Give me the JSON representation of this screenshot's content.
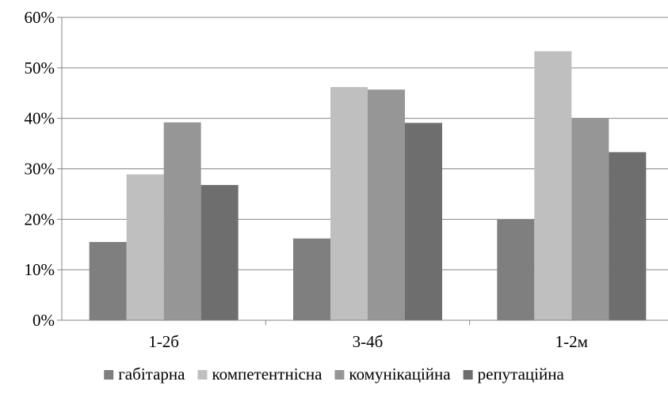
{
  "chart_data": {
    "type": "bar",
    "categories": [
      "1-2б",
      "3-4б",
      "1-2м"
    ],
    "series": [
      {
        "name": "габітарна",
        "values": [
          15.5,
          16.2,
          20.0
        ],
        "color": "#7f7f7f"
      },
      {
        "name": "компетентнісна",
        "values": [
          28.9,
          46.2,
          53.3
        ],
        "color": "#bfbfbf"
      },
      {
        "name": "комунікаційна",
        "values": [
          39.2,
          45.7,
          40.0
        ],
        "color": "#969696"
      },
      {
        "name": "репутаційна",
        "values": [
          26.8,
          39.1,
          33.3
        ],
        "color": "#6e6e6e"
      }
    ],
    "y_ticks": [
      "0%",
      "10%",
      "20%",
      "30%",
      "40%",
      "50%",
      "60%"
    ],
    "ylim": [
      0,
      60
    ],
    "y_unit": "%",
    "grid": true,
    "grid_color": "#868686",
    "legend_position": "bottom"
  }
}
